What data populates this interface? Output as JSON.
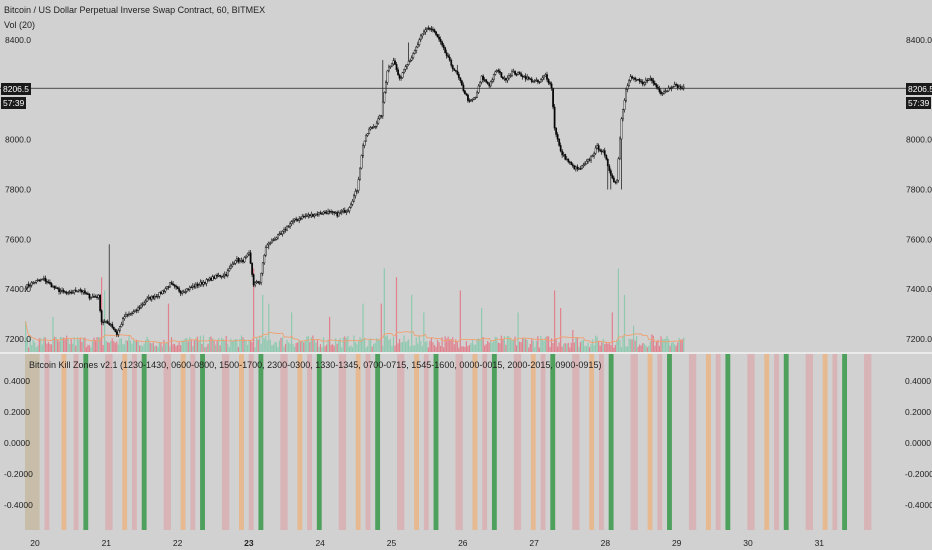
{
  "legend": {
    "symbol": "Bitcoin / US Dollar Perpetual Inverse Swap Contract, 60, BITMEX",
    "volume": "Vol (20)",
    "indicator": "Bitcoin Kill Zones v2.1 (1230-1430, 0600-0800, 1500-1700, 2300-0300, 1330-1345, 0700-0715, 1545-1600, 0000-0015, 2000-2015, 0900-0915)"
  },
  "price_tag": {
    "last": "8206.5",
    "countdown": "57:39"
  },
  "colors": {
    "background": "#d1d1d1",
    "candle_up": "#ffffff",
    "candle_down": "#000000",
    "volume_up": "#8fc9b0",
    "volume_down": "#e0828e",
    "volume_ma": "#f0a070",
    "zone_pink": "#d9a9ad",
    "zone_orange": "#ecb07a",
    "zone_green": "#3f9a50",
    "zone_olive": "#c3b59a"
  },
  "chart_data": [
    {
      "type": "candlestick",
      "ylim": [
        7150,
        8520
      ],
      "y_ticks": [
        "8400.0",
        "8200.0",
        "8000.0",
        "7800.0",
        "7600.0",
        "7400.0",
        "7200.0"
      ],
      "x_ticks": [
        "20",
        "21",
        "22",
        "23",
        "24",
        "25",
        "26",
        "27",
        "28",
        "29",
        "30",
        "31"
      ],
      "last_price": 8206.5,
      "close_anchors": [
        [
          0,
          7410
        ],
        [
          6,
          7430
        ],
        [
          12,
          7440
        ],
        [
          20,
          7400
        ],
        [
          28,
          7380
        ],
        [
          35,
          7400
        ],
        [
          42,
          7370
        ],
        [
          48,
          7370
        ],
        [
          50,
          7270
        ],
        [
          56,
          7260
        ],
        [
          60,
          7220
        ],
        [
          65,
          7290
        ],
        [
          72,
          7310
        ],
        [
          80,
          7360
        ],
        [
          88,
          7380
        ],
        [
          95,
          7420
        ],
        [
          102,
          7390
        ],
        [
          110,
          7410
        ],
        [
          118,
          7430
        ],
        [
          125,
          7450
        ],
        [
          132,
          7460
        ],
        [
          138,
          7520
        ],
        [
          142,
          7510
        ],
        [
          147,
          7540
        ],
        [
          150,
          7420
        ],
        [
          154,
          7430
        ],
        [
          158,
          7570
        ],
        [
          163,
          7600
        ],
        [
          168,
          7620
        ],
        [
          175,
          7670
        ],
        [
          182,
          7690
        ],
        [
          190,
          7700
        ],
        [
          198,
          7710
        ],
        [
          205,
          7700
        ],
        [
          212,
          7720
        ],
        [
          218,
          7800
        ],
        [
          222,
          7980
        ],
        [
          226,
          8040
        ],
        [
          230,
          8060
        ],
        [
          234,
          8100
        ],
        [
          238,
          8280
        ],
        [
          242,
          8320
        ],
        [
          246,
          8240
        ],
        [
          250,
          8300
        ],
        [
          255,
          8340
        ],
        [
          260,
          8410
        ],
        [
          264,
          8450
        ],
        [
          268,
          8440
        ],
        [
          272,
          8400
        ],
        [
          276,
          8350
        ],
        [
          280,
          8300
        ],
        [
          284,
          8260
        ],
        [
          288,
          8200
        ],
        [
          292,
          8150
        ],
        [
          296,
          8170
        ],
        [
          300,
          8250
        ],
        [
          305,
          8220
        ],
        [
          310,
          8280
        ],
        [
          315,
          8240
        ],
        [
          320,
          8270
        ],
        [
          326,
          8260
        ],
        [
          332,
          8240
        ],
        [
          338,
          8230
        ],
        [
          342,
          8260
        ],
        [
          346,
          8210
        ],
        [
          348,
          8050
        ],
        [
          352,
          7950
        ],
        [
          356,
          7920
        ],
        [
          360,
          7890
        ],
        [
          364,
          7880
        ],
        [
          368,
          7900
        ],
        [
          372,
          7930
        ],
        [
          376,
          7970
        ],
        [
          380,
          7950
        ],
        [
          384,
          7880
        ],
        [
          387,
          7830
        ],
        [
          389,
          7840
        ],
        [
          392,
          8090
        ],
        [
          395,
          8200
        ],
        [
          398,
          8250
        ],
        [
          402,
          8240
        ],
        [
          406,
          8220
        ],
        [
          410,
          8250
        ],
        [
          414,
          8220
        ],
        [
          418,
          8190
        ],
        [
          422,
          8200
        ],
        [
          426,
          8220
        ],
        [
          430,
          8210
        ],
        [
          433,
          8206
        ]
      ],
      "bar_count": 434,
      "wick_spikes": [
        [
          55,
          7580
        ],
        [
          160,
          7560
        ],
        [
          235,
          8320
        ],
        [
          252,
          8390
        ],
        [
          284,
          8300
        ],
        [
          383,
          7800
        ],
        [
          385,
          7800
        ],
        [
          392,
          7800
        ]
      ]
    },
    {
      "type": "bar",
      "name": "Vol",
      "volume_spikes": [
        [
          0,
          0.35
        ],
        [
          18,
          0.4
        ],
        [
          50,
          0.85
        ],
        [
          52,
          0.7
        ],
        [
          94,
          0.55
        ],
        [
          150,
          0.95
        ],
        [
          156,
          0.65
        ],
        [
          160,
          0.55
        ],
        [
          175,
          0.45
        ],
        [
          200,
          0.4
        ],
        [
          222,
          0.55
        ],
        [
          234,
          0.55
        ],
        [
          236,
          0.95
        ],
        [
          244,
          0.85
        ],
        [
          254,
          0.65
        ],
        [
          262,
          0.45
        ],
        [
          286,
          0.7
        ],
        [
          300,
          0.5
        ],
        [
          324,
          0.45
        ],
        [
          348,
          0.7
        ],
        [
          352,
          0.5
        ],
        [
          360,
          0.25
        ],
        [
          386,
          0.45
        ],
        [
          390,
          0.95
        ],
        [
          394,
          0.65
        ],
        [
          400,
          0.3
        ],
        [
          412,
          0.2
        ],
        [
          420,
          0.15
        ]
      ]
    },
    {
      "type": "bar",
      "name": "Bitcoin Kill Zones v2.1",
      "ylim": [
        -0.55,
        0.55
      ],
      "y_ticks": [
        "0.4000",
        "0.2000",
        "0.0000",
        "-0.2000",
        "-0.4000"
      ],
      "zones": [
        [
          0,
          4,
          "olive"
        ],
        [
          4,
          6,
          "olive"
        ],
        [
          8,
          10,
          "pink"
        ],
        [
          15,
          17,
          "orange"
        ],
        [
          20,
          22,
          "pink"
        ],
        [
          24,
          26,
          "green"
        ],
        [
          33,
          36,
          "pink"
        ],
        [
          40,
          42,
          "orange"
        ],
        [
          44,
          46,
          "pink"
        ],
        [
          48,
          50,
          "green"
        ],
        [
          57,
          60,
          "pink"
        ],
        [
          64,
          66,
          "orange"
        ],
        [
          68,
          70,
          "pink"
        ],
        [
          72,
          74,
          "green"
        ],
        [
          81,
          84,
          "pink"
        ],
        [
          88,
          90,
          "orange"
        ],
        [
          92,
          94,
          "pink"
        ],
        [
          96,
          98,
          "green"
        ],
        [
          105,
          108,
          "pink"
        ],
        [
          112,
          114,
          "orange"
        ],
        [
          116,
          118,
          "pink"
        ],
        [
          120,
          122,
          "green"
        ],
        [
          129,
          132,
          "pink"
        ],
        [
          136,
          138,
          "orange"
        ],
        [
          140,
          142,
          "pink"
        ],
        [
          144,
          146,
          "green"
        ],
        [
          153,
          156,
          "pink"
        ],
        [
          160,
          162,
          "orange"
        ],
        [
          164,
          166,
          "pink"
        ],
        [
          168,
          170,
          "green"
        ],
        [
          177,
          180,
          "pink"
        ],
        [
          184,
          186,
          "orange"
        ],
        [
          188,
          190,
          "pink"
        ],
        [
          192,
          194,
          "green"
        ],
        [
          201,
          204,
          "pink"
        ],
        [
          208,
          210,
          "orange"
        ],
        [
          212,
          214,
          "pink"
        ],
        [
          216,
          218,
          "green"
        ],
        [
          225,
          228,
          "pink"
        ],
        [
          232,
          234,
          "orange"
        ],
        [
          236,
          238,
          "pink"
        ],
        [
          240,
          242,
          "green"
        ],
        [
          249,
          252,
          "pink"
        ],
        [
          256,
          258,
          "orange"
        ],
        [
          260,
          262,
          "pink"
        ],
        [
          264,
          266,
          "green"
        ],
        [
          273,
          276,
          "pink"
        ],
        [
          280,
          282,
          "orange"
        ],
        [
          284,
          286,
          "pink"
        ],
        [
          288,
          290,
          "green"
        ],
        [
          297,
          300,
          "pink"
        ],
        [
          304,
          306,
          "orange"
        ],
        [
          308,
          310,
          "pink"
        ],
        [
          312,
          314,
          "green"
        ],
        [
          321,
          324,
          "pink"
        ],
        [
          328,
          330,
          "orange"
        ],
        [
          332,
          334,
          "pink"
        ],
        [
          336,
          338,
          "green"
        ],
        [
          345,
          348,
          "pink"
        ],
        [
          352,
          354,
          "orange"
        ],
        [
          356,
          358,
          "pink"
        ],
        [
          360,
          362,
          "green"
        ],
        [
          369,
          372,
          "pink"
        ],
        [
          376,
          378,
          "orange"
        ],
        [
          380,
          382,
          "pink"
        ],
        [
          384,
          386,
          "green"
        ],
        [
          393,
          396,
          "pink"
        ],
        [
          400,
          402,
          "orange"
        ],
        [
          404,
          406,
          "pink"
        ],
        [
          408,
          410,
          "green"
        ],
        [
          417,
          420,
          "pink"
        ],
        [
          424,
          426,
          "orange"
        ],
        [
          428,
          430,
          "pink"
        ],
        [
          432,
          434,
          "green"
        ],
        [
          441,
          444,
          "pink"
        ],
        [
          448,
          450,
          "orange"
        ],
        [
          452,
          454,
          "pink"
        ],
        [
          456,
          458,
          "green"
        ]
      ]
    }
  ]
}
